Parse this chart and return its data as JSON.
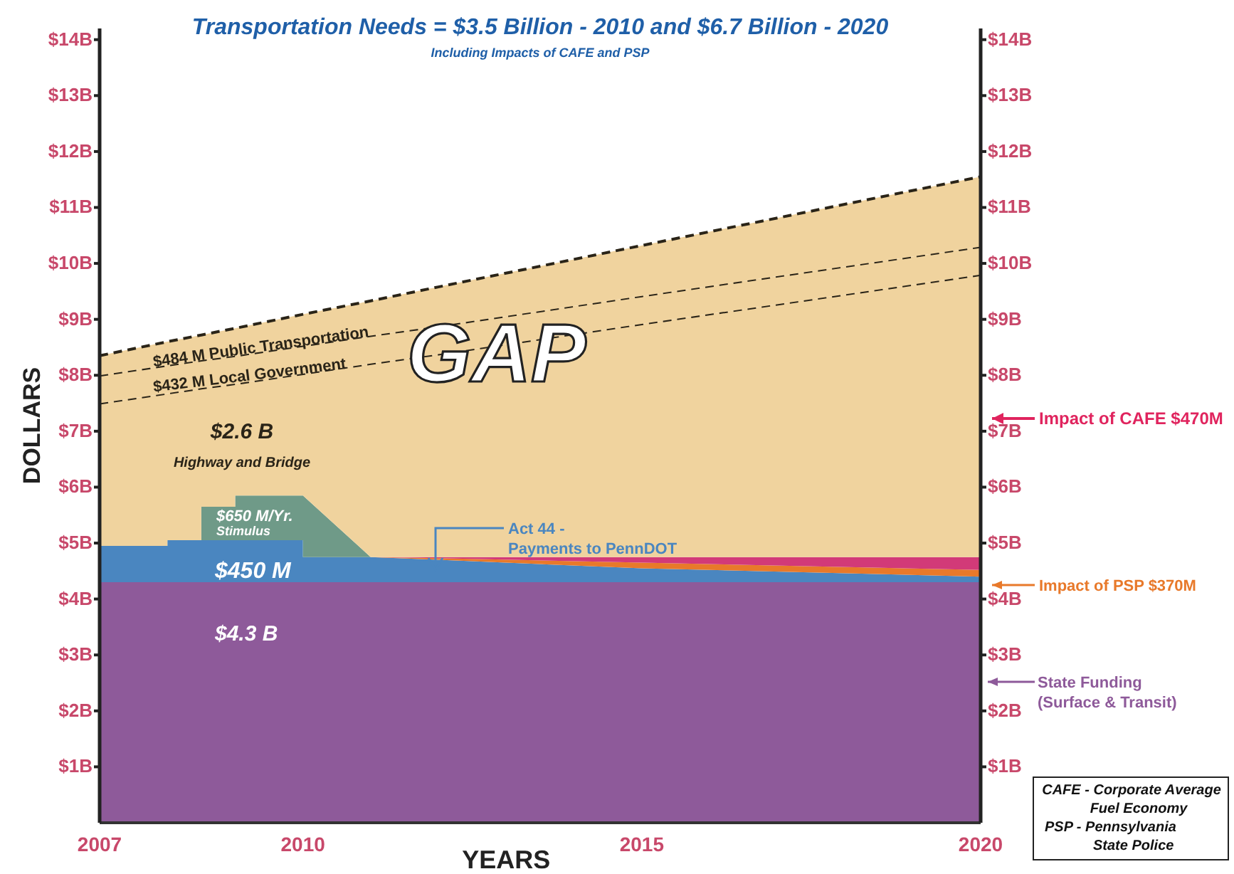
{
  "chart_data": {
    "type": "area",
    "stacked": true,
    "title": "Transportation Needs = $3.5 Billion - 2010 and $6.7 Billion - 2020",
    "subtitle": "Including Impacts of CAFE and PSP",
    "xlabel": "YEARS",
    "ylabel": "DOLLARS",
    "x": [
      2007,
      2008,
      2008,
      2008.5,
      2008.5,
      2009,
      2009,
      2010,
      2010,
      2011,
      2012,
      2015,
      2020
    ],
    "xlim": [
      2007,
      2020
    ],
    "xticks": [
      2007,
      2010,
      2015,
      2020
    ],
    "ylim": [
      0,
      14.2
    ],
    "yticks": [
      {
        "value": 1,
        "label": "$1B"
      },
      {
        "value": 2,
        "label": "$2B"
      },
      {
        "value": 3,
        "label": "$3B"
      },
      {
        "value": 4,
        "label": "$4B"
      },
      {
        "value": 5,
        "label": "$5B"
      },
      {
        "value": 6,
        "label": "$6B"
      },
      {
        "value": 7,
        "label": "$7B"
      },
      {
        "value": 8,
        "label": "$8B"
      },
      {
        "value": 9,
        "label": "$9B"
      },
      {
        "value": 10,
        "label": "$10B"
      },
      {
        "value": 11,
        "label": "$11B"
      },
      {
        "value": 12,
        "label": "$12B"
      },
      {
        "value": 13,
        "label": "$13B"
      },
      {
        "value": 14,
        "label": "$14B"
      }
    ],
    "y2lim": [
      0,
      14.2
    ],
    "y2ticks": [
      {
        "value": 1,
        "label": "$1B"
      },
      {
        "value": 2,
        "label": "$2B"
      },
      {
        "value": 3,
        "label": "$3B"
      },
      {
        "value": 4,
        "label": "$4B"
      },
      {
        "value": 5,
        "label": "$5B"
      },
      {
        "value": 6,
        "label": "$6B"
      },
      {
        "value": 7,
        "label": "$7B"
      },
      {
        "value": 8,
        "label": "$8B"
      },
      {
        "value": 9,
        "label": "$9B"
      },
      {
        "value": 10,
        "label": "$10B"
      },
      {
        "value": 11,
        "label": "$11B"
      },
      {
        "value": 12,
        "label": "$12B"
      },
      {
        "value": 13,
        "label": "$13B"
      },
      {
        "value": 14,
        "label": "$14B"
      }
    ],
    "grid": false,
    "series": [
      {
        "color": "#8e5a9a",
        "values": [
          4.3,
          4.3,
          4.3,
          4.3,
          4.3,
          4.3,
          4.3,
          4.3,
          4.3,
          4.3,
          4.3,
          4.3,
          4.3
        ]
      },
      {
        "color": "#4a86c0",
        "values": [
          0.65,
          0.65,
          0.75,
          0.75,
          0.75,
          0.75,
          0.75,
          0.75,
          0.45,
          0.45,
          0.4,
          0.25,
          0.1
        ]
      },
      {
        "color": "#e8792a",
        "values": [
          0,
          0,
          0,
          0,
          0,
          0,
          0,
          0,
          0,
          0,
          0.03,
          0.1,
          0.12
        ]
      },
      {
        "color": "#d23a78",
        "values": [
          0,
          0,
          0,
          0,
          0,
          0,
          0,
          0,
          0,
          0,
          0.02,
          0.1,
          0.23
        ]
      },
      {
        "color": "#6f9a88",
        "values": [
          0,
          0,
          0,
          0,
          0.6,
          0.6,
          0.8,
          0.8,
          1.1,
          0,
          0,
          0,
          0
        ]
      },
      {
        "color": "#f0d39e",
        "line_style": "dashed",
        "values": [
          2.55,
          2.73,
          2.63,
          2.72,
          2.12,
          2.2,
          2.0,
          2.18,
          2.18,
          3.46,
          3.63,
          4.17,
          5.05
        ]
      },
      {
        "color": "#f0d39e",
        "line_style": "dashed",
        "values": [
          0.5,
          0.5,
          0.5,
          0.5,
          0.5,
          0.5,
          0.5,
          0.5,
          0.5,
          0.5,
          0.5,
          0.5,
          0.5
        ]
      },
      {
        "color": "#f0d39e",
        "line_style": "dashed",
        "values": [
          0.35,
          0.42,
          0.42,
          0.45,
          0.45,
          0.49,
          0.49,
          0.56,
          0.56,
          0.62,
          0.7,
          0.9,
          1.25
        ]
      }
    ],
    "annotations": [
      {
        "text": "$484 M Public Transportation",
        "x": 2007.8,
        "y": 8.15
      },
      {
        "text": "$432 M Local Government",
        "x": 2007.8,
        "y": 7.7
      },
      "GAP",
      "$2.6 B",
      "Highway and Bridge",
      "$650 M/Yr.",
      "Stimulus",
      "$450 M",
      "$4.3 B",
      "Act 44 -",
      "Payments to PennDOT",
      "Impact of CAFE $470M",
      "Impact of PSP $370M",
      "State Funding",
      "(Surface & Transit)",
      "CAFE - Corporate Average",
      "Fuel Economy",
      "PSP -  Pennsylvania",
      "State Police"
    ]
  }
}
